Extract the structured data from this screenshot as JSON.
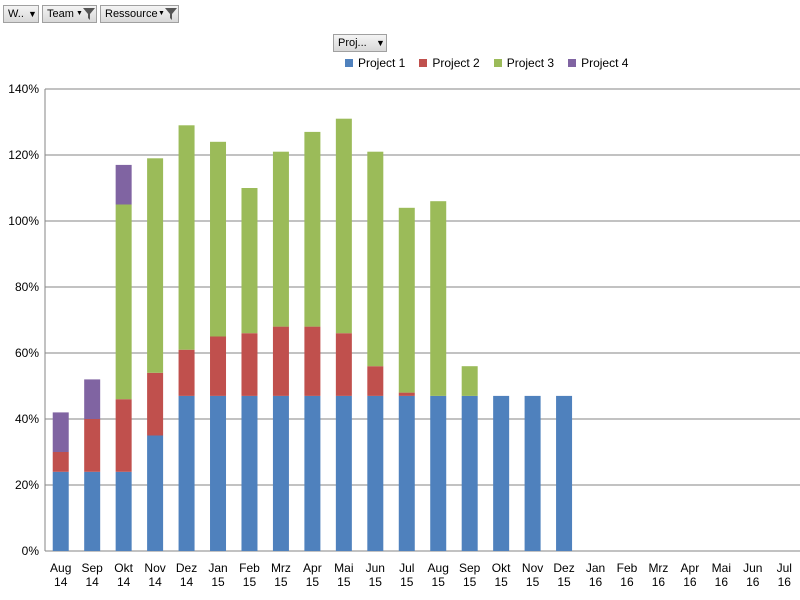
{
  "filters": [
    {
      "label": "W..",
      "has_funnel": false
    },
    {
      "label": "Team",
      "has_funnel": true
    },
    {
      "label": "Ressource",
      "has_funnel": true
    }
  ],
  "legend_filter": {
    "label": "Proj..."
  },
  "colors": {
    "Project 1": "#4f81bd",
    "Project 2": "#c0504d",
    "Project 3": "#9bbb59",
    "Project 4": "#8064a2"
  },
  "chart_data": {
    "type": "bar",
    "stacked": true,
    "categories": [
      "Aug 14",
      "Sep 14",
      "Okt 14",
      "Nov 14",
      "Dez 14",
      "Jan 15",
      "Feb 15",
      "Mrz 15",
      "Apr 15",
      "Mai 15",
      "Jun 15",
      "Jul 15",
      "Aug 15",
      "Sep 15",
      "Okt 15",
      "Nov 15",
      "Dez 15",
      "Jan 16",
      "Feb 16",
      "Mrz 16",
      "Apr 16",
      "Mai 16",
      "Jun 16",
      "Jul 16"
    ],
    "series": [
      {
        "name": "Project 1",
        "values": [
          24,
          24,
          24,
          35,
          47,
          47,
          47,
          47,
          47,
          47,
          47,
          47,
          47,
          47,
          47,
          47,
          47,
          0,
          0,
          0,
          0,
          0,
          0,
          0
        ]
      },
      {
        "name": "Project 2",
        "values": [
          6,
          16,
          22,
          19,
          14,
          18,
          19,
          21,
          21,
          19,
          9,
          1,
          0,
          0,
          0,
          0,
          0,
          0,
          0,
          0,
          0,
          0,
          0,
          0
        ]
      },
      {
        "name": "Project 3",
        "values": [
          0,
          0,
          59,
          65,
          68,
          59,
          44,
          53,
          59,
          65,
          65,
          56,
          59,
          9,
          0,
          0,
          0,
          0,
          0,
          0,
          0,
          0,
          0,
          0
        ]
      },
      {
        "name": "Project 4",
        "values": [
          12,
          12,
          12,
          0,
          0,
          0,
          0,
          0,
          0,
          0,
          0,
          0,
          0,
          0,
          0,
          0,
          0,
          0,
          0,
          0,
          0,
          0,
          0,
          0
        ]
      }
    ],
    "ylim": [
      0,
      140
    ],
    "yticks": [
      "0%",
      "20%",
      "40%",
      "60%",
      "80%",
      "100%",
      "120%",
      "140%"
    ],
    "grid": true,
    "legend_position": "top"
  }
}
